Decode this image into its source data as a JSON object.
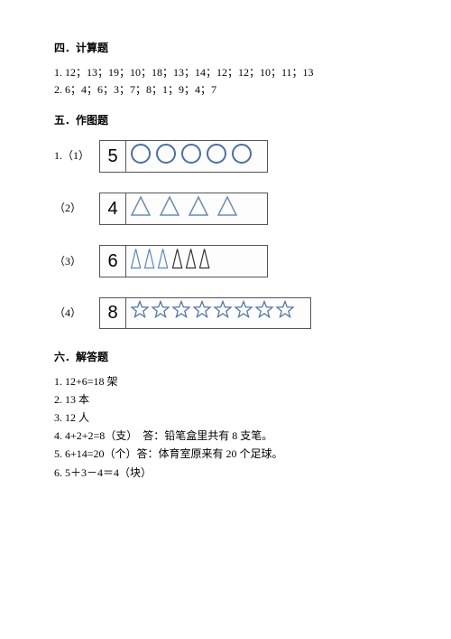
{
  "section4": {
    "title": "四．计算题",
    "line1": "1. 12；13；19；10；18；13；14；12；12；10；11；13",
    "line2": "2. 6；4；6；3；7；8；1；9；4；7"
  },
  "section5": {
    "title": "五．作图题",
    "items": [
      {
        "label": "1.（1）",
        "number": "5",
        "shape": "circle",
        "count": 5,
        "stroke": "#4a6fa8",
        "fill": "none",
        "strokeWidth": 2,
        "size": 24,
        "cellMinWidth": 148,
        "gap": 4
      },
      {
        "label": "（2）",
        "number": "4",
        "shape": "triangle",
        "count": 4,
        "stroke": "#6b8bb8",
        "fill": "none",
        "strokeWidth": 1.5,
        "size": 24,
        "cellMinWidth": 148,
        "gap": 8
      },
      {
        "label": "（3）",
        "number": "6",
        "shape": "narrow-triangle",
        "count": 6,
        "strokes": [
          "#5b84c4",
          "#5b84c4",
          "#5b84c4",
          "#333333",
          "#333333",
          "#333333"
        ],
        "fill": "none",
        "strokeWidth": 1.2,
        "size": 24,
        "cellMinWidth": 148,
        "gap": 2
      },
      {
        "label": "（4）",
        "number": "8",
        "shape": "star",
        "count": 8,
        "stroke": "#4a6fa8",
        "fill": "none",
        "strokeWidth": 1.2,
        "size": 22,
        "cellMinWidth": 196,
        "gap": 1
      }
    ]
  },
  "section6": {
    "title": "六．解答题",
    "lines": [
      "1. 12+6=18 架",
      "2. 13 本",
      "3. 12 人",
      "4. 4+2+2=8（支）　答：铅笔盒里共有 8 支笔。",
      "5. 6+14=20（个）答：体育室原来有 20 个足球。",
      "6. 5＋3－4＝4（块）"
    ]
  },
  "colors": {
    "page_bg": "#ffffff",
    "text": "#000000",
    "frame_border": "#555555"
  }
}
